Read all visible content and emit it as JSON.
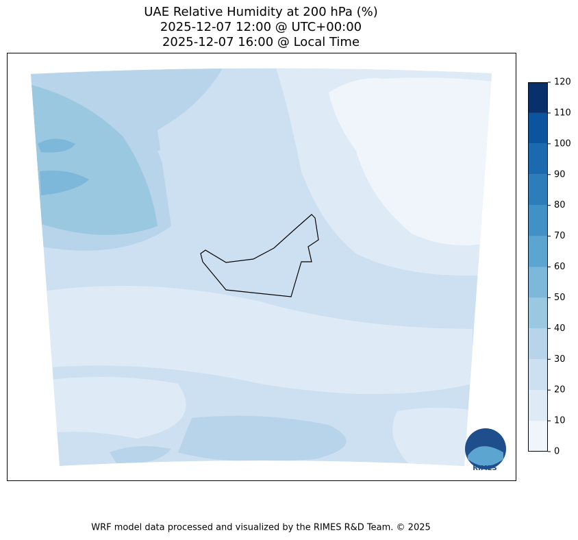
{
  "title": [
    "UAE Relative Humidity at 200 hPa (%)",
    "2025-12-07 12:00 @ UTC+00:00",
    "2025-12-07 16:00 @ Local Time"
  ],
  "colorbar": {
    "ticks": [
      0,
      10,
      20,
      30,
      40,
      50,
      60,
      70,
      80,
      90,
      100,
      110,
      120
    ],
    "colors": [
      "#eff5fb",
      "#deebf7",
      "#cde0f1",
      "#b7d4ea",
      "#9ac8e0",
      "#7db8da",
      "#5da5d1",
      "#4191c6",
      "#2d7dbb",
      "#1b69af",
      "#0b559f",
      "#08306b"
    ]
  },
  "logo": "RIMES",
  "footer": "WRF model data processed and visualized by the RIMES R&D Team. © 2025"
}
